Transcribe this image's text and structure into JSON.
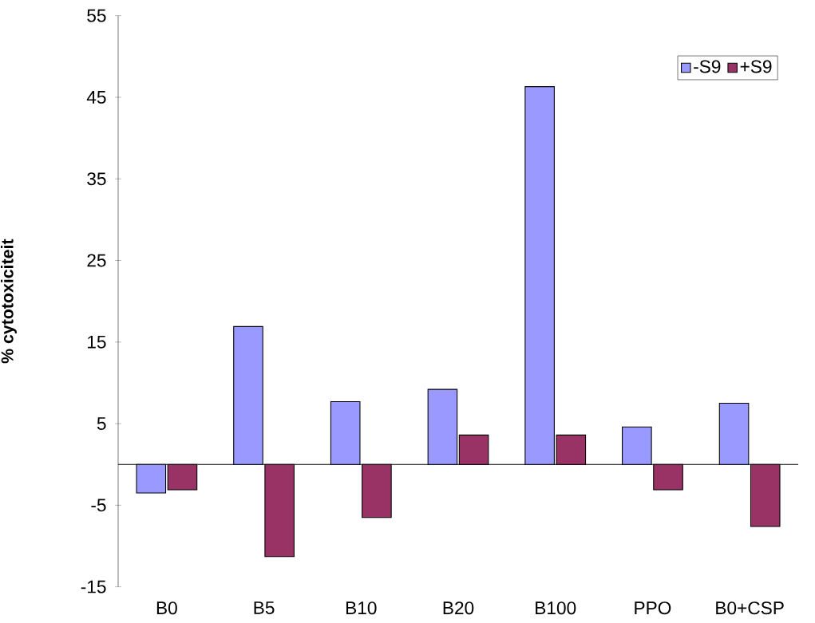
{
  "chart_data": {
    "type": "bar",
    "ylabel": "% cytotoxiciteit",
    "categories": [
      "B0",
      "B5",
      "B10",
      "B20",
      "B100",
      "PPO",
      "B0+CSP"
    ],
    "series": [
      {
        "name": "-S9",
        "color": "#9999ff",
        "values": [
          -3.5,
          16.9,
          7.7,
          9.2,
          46.3,
          4.6,
          7.5
        ]
      },
      {
        "name": "+S9",
        "color": "#993366",
        "values": [
          -3.1,
          -11.3,
          -6.5,
          3.6,
          3.6,
          -3.1,
          -7.6
        ]
      }
    ],
    "ylim": [
      -15,
      55
    ],
    "yticks": [
      -15,
      -5,
      5,
      15,
      25,
      35,
      45,
      55
    ],
    "legend": "top right"
  }
}
